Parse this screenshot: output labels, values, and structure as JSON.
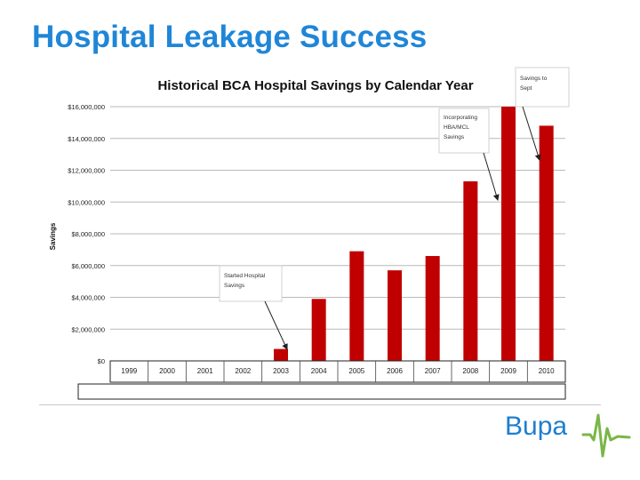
{
  "slide": {
    "title": "Hospital Leakage Success"
  },
  "logo": {
    "text": "Bupa",
    "color": "#1f7ecf",
    "wave_color": "#7ab648"
  },
  "chart_data": {
    "type": "bar",
    "title": "Historical BCA Hospital Savings by Calendar Year",
    "xlabel": "",
    "ylabel": "Savings",
    "categories": [
      "1999",
      "2000",
      "2001",
      "2002",
      "2003",
      "2004",
      "2005",
      "2006",
      "2007",
      "2008",
      "2009",
      "2010"
    ],
    "values": [
      0,
      0,
      0,
      0,
      750000,
      3900000,
      6900000,
      5700000,
      6600000,
      11300000,
      16000000,
      14800000
    ],
    "ylim": [
      0,
      16000000
    ],
    "yticks": [
      0,
      2000000,
      4000000,
      6000000,
      8000000,
      10000000,
      12000000,
      14000000,
      16000000
    ],
    "ytick_labels": [
      "$0",
      "$2,000,000",
      "$4,000,000",
      "$6,000,000",
      "$8,000,000",
      "$10,000,000",
      "$12,000,000",
      "$14,000,000",
      "$16,000,000"
    ],
    "bar_color": "#c00000",
    "grid": true,
    "annotations": [
      {
        "text": [
          "Started Hospital",
          "Savings"
        ],
        "target_category": "2003"
      },
      {
        "text": [
          "Incorporating",
          "HBA/MCL",
          "Savings"
        ],
        "target_category": "2009"
      },
      {
        "text": [
          "Savings to",
          "Sept"
        ],
        "target_category": "2010"
      }
    ]
  }
}
